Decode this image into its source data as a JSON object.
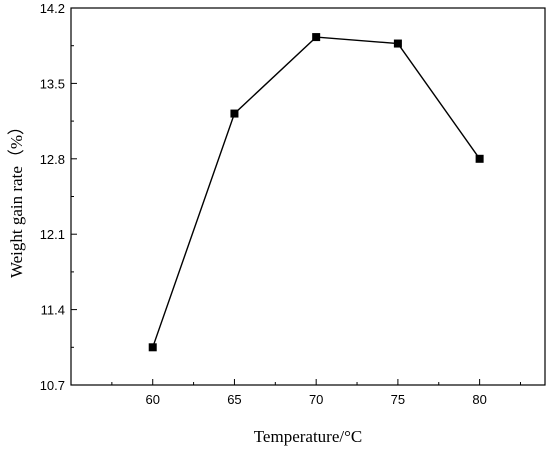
{
  "chart_data": {
    "type": "line",
    "xlabel": "Temperature/°C",
    "ylabel": "Weight gain rate（%）",
    "x": [
      60,
      65,
      70,
      75,
      80
    ],
    "series": [
      {
        "values": [
          11.05,
          13.22,
          13.93,
          13.87,
          12.8
        ]
      }
    ],
    "xticks": [
      "60",
      "65",
      "70",
      "75",
      "80"
    ],
    "yticks": [
      "10.7",
      "11.4",
      "12.1",
      "12.8",
      "13.5",
      "14.2"
    ],
    "xlim": [
      55,
      84
    ],
    "ylim": [
      10.7,
      14.2
    ],
    "marker": "square",
    "line_color": "#000000",
    "grid": false,
    "legend": "none"
  }
}
